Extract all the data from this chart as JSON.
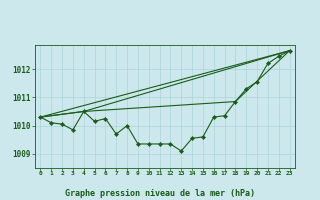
{
  "title": "Graphe pression niveau de la mer (hPa)",
  "background_color": "#cce8ec",
  "grid_color": "#aad4d8",
  "line_color": "#1a5c1a",
  "xlim": [
    -0.5,
    23.5
  ],
  "ylim": [
    1008.5,
    1012.85
  ],
  "yticks": [
    1009,
    1010,
    1011,
    1012
  ],
  "xticks": [
    0,
    1,
    2,
    3,
    4,
    5,
    6,
    7,
    8,
    9,
    10,
    11,
    12,
    13,
    14,
    15,
    16,
    17,
    18,
    19,
    20,
    21,
    22,
    23
  ],
  "series_main": {
    "x": [
      0,
      1,
      2,
      3,
      4,
      5,
      6,
      7,
      8,
      9,
      10,
      11,
      12,
      13,
      14,
      15,
      16,
      17,
      18,
      19,
      20,
      21,
      22,
      23
    ],
    "y": [
      1010.3,
      1010.1,
      1010.05,
      1009.85,
      1010.5,
      1010.15,
      1010.25,
      1009.7,
      1010.0,
      1009.35,
      1009.35,
      1009.35,
      1009.35,
      1009.1,
      1009.55,
      1009.6,
      1010.3,
      1010.35,
      1010.85,
      1011.3,
      1011.55,
      1012.2,
      1012.45,
      1012.65
    ]
  },
  "series_line1": {
    "x": [
      0,
      23
    ],
    "y": [
      1010.3,
      1012.65
    ]
  },
  "series_line2": {
    "x": [
      0,
      4,
      23
    ],
    "y": [
      1010.3,
      1010.5,
      1012.65
    ]
  },
  "series_line3": {
    "x": [
      0,
      4,
      18,
      23
    ],
    "y": [
      1010.3,
      1010.5,
      1010.85,
      1012.65
    ]
  }
}
